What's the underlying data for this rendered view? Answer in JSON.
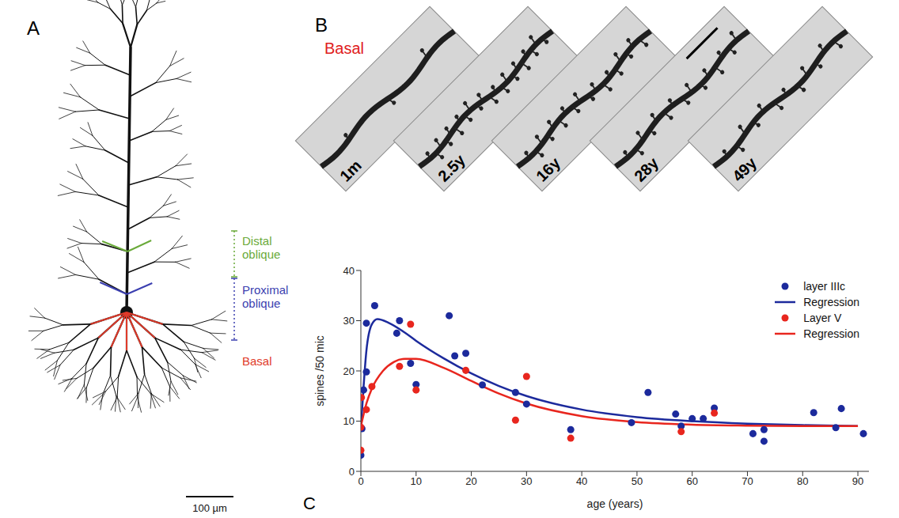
{
  "panel_labels": [
    "A",
    "B",
    "C"
  ],
  "neuron": {
    "labels": [
      {
        "text": "Distal oblique",
        "color": "#6aaa3a"
      },
      {
        "text": "Proximal oblique",
        "color": "#3b3fb0"
      },
      {
        "text": "Basal",
        "color": "#e03a2a"
      }
    ],
    "scale_bar": "100 µm"
  },
  "micrographs": {
    "title": "Basal",
    "color": "#e02020",
    "labels": [
      "1m",
      "2.5y",
      "16y",
      "28y",
      "49y"
    ]
  },
  "chart_data": {
    "type": "scatter",
    "xlabel": "age (years)",
    "ylabel": "spines /50 mic",
    "xlim": [
      0,
      92
    ],
    "xticks": [
      0,
      10,
      20,
      30,
      40,
      50,
      60,
      70,
      80,
      90
    ],
    "ylim": [
      0,
      40
    ],
    "yticks": [
      0,
      10,
      20,
      30,
      40
    ],
    "grid": false,
    "legend": "upper right",
    "series": [
      {
        "name": "layer IIIc",
        "type": "scatter",
        "marker": "circle",
        "color": "#1c2a9c",
        "x": [
          0,
          0.2,
          0.5,
          1,
          1,
          2.5,
          6.5,
          7,
          9,
          10,
          16,
          17,
          19,
          22,
          28,
          30,
          38,
          49,
          52,
          57,
          58,
          60,
          62,
          64,
          71,
          73,
          73,
          82,
          86,
          87,
          91
        ],
        "values": [
          3.2,
          8.5,
          16.2,
          29.5,
          19.8,
          33,
          27.5,
          30,
          21.5,
          17.3,
          31,
          23,
          23.5,
          17.2,
          15.7,
          13.4,
          8.3,
          9.7,
          15.7,
          11.4,
          9,
          10.5,
          10.5,
          12.6,
          7.5,
          8.3,
          6,
          11.7,
          8.7,
          12.5,
          7.5
        ]
      },
      {
        "name": "Regression",
        "type": "line",
        "line_style": "solid",
        "color": "#1c2a9c",
        "x": [
          0,
          0.5,
          1,
          2,
          3,
          5,
          8,
          10,
          15,
          20,
          25,
          30,
          40,
          50,
          60,
          70,
          80,
          90
        ],
        "values": [
          8.5,
          17,
          24,
          29.3,
          30.3,
          29.6,
          27.6,
          26,
          22.5,
          19.5,
          17,
          15,
          12.3,
          10.8,
          10,
          9.5,
          9.2,
          9
        ]
      },
      {
        "name": "Layer V",
        "type": "scatter",
        "marker": "circle",
        "color": "#e8261e",
        "x": [
          0,
          0,
          0.1,
          1,
          2,
          7,
          9,
          10,
          19,
          28,
          30,
          38,
          58,
          64
        ],
        "values": [
          4.2,
          8.8,
          14.7,
          12.3,
          16.9,
          20.9,
          29.3,
          16.2,
          20.1,
          10.2,
          18.9,
          6.6,
          7.9,
          11.6
        ]
      },
      {
        "name": "Regression",
        "type": "line",
        "line_style": "solid",
        "color": "#e8261e",
        "x": [
          0,
          1,
          2,
          4,
          6,
          8,
          10,
          15,
          20,
          25,
          30,
          40,
          50,
          60,
          70,
          80,
          90
        ],
        "values": [
          9,
          13.5,
          16.5,
          20,
          21.8,
          22.4,
          22.4,
          20.6,
          18,
          15.5,
          13.5,
          11,
          9.8,
          9.3,
          9.1,
          9,
          9
        ]
      }
    ]
  }
}
